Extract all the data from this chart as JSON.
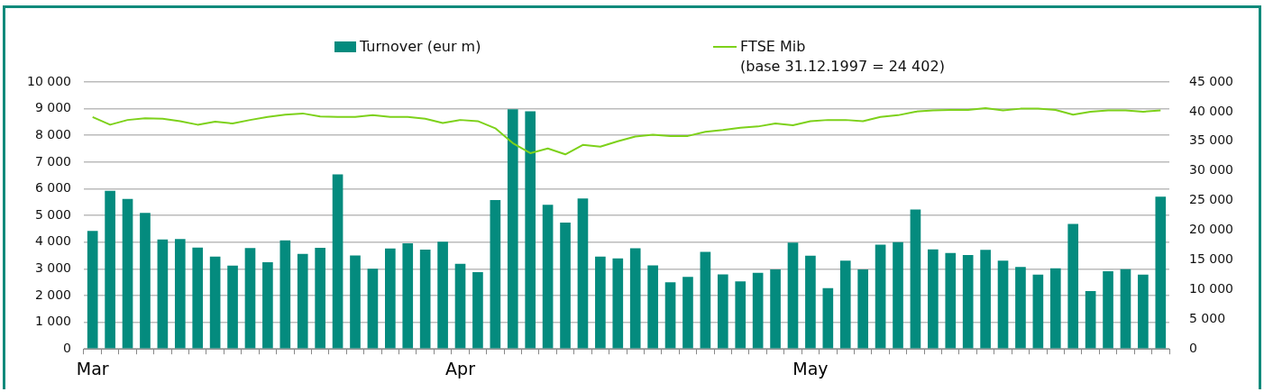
{
  "chart_data": {
    "type": "bar",
    "categories": [
      "Mar",
      null,
      null,
      null,
      null,
      null,
      null,
      null,
      null,
      null,
      null,
      null,
      null,
      null,
      null,
      null,
      null,
      null,
      null,
      null,
      null,
      "Apr",
      null,
      null,
      null,
      null,
      null,
      null,
      null,
      null,
      null,
      null,
      null,
      null,
      null,
      null,
      null,
      null,
      null,
      null,
      null,
      "May",
      null,
      null,
      null,
      null,
      null,
      null,
      null,
      null,
      null,
      null,
      null,
      null,
      null,
      null,
      null,
      null,
      null,
      null,
      null,
      null
    ],
    "series": [
      {
        "name": "Turnover (eur m)",
        "color": "#048b7e",
        "values": [
          4420,
          5920,
          5620,
          5100,
          4100,
          4120,
          3800,
          3460,
          3120,
          3780,
          3250,
          4070,
          3560,
          3790,
          6540,
          3500,
          3000,
          3760,
          3960,
          3720,
          4020,
          3190,
          2880,
          5580,
          8980,
          8900,
          5400,
          4730,
          5640,
          3460,
          3390,
          3770,
          3130,
          2500,
          2700,
          3640,
          2790,
          2530,
          2850,
          2980,
          3980,
          3490,
          2280,
          3310,
          2980,
          3910,
          4000,
          5220,
          3730,
          3590,
          3520,
          3710,
          3310,
          3070,
          2780,
          3020,
          4680,
          2170,
          2910,
          2990,
          2780,
          5700
        ]
      },
      {
        "name": "FTSE Mib\n(base 31.12.1997 = 24 402)",
        "type": "line",
        "axis": "y2",
        "color": "#7dd11a",
        "values": [
          39100,
          37800,
          38600,
          38900,
          38800,
          38400,
          37800,
          38300,
          38000,
          38600,
          39100,
          39500,
          39700,
          39200,
          39100,
          39100,
          39400,
          39100,
          39100,
          38800,
          38100,
          38600,
          38400,
          37200,
          34700,
          33000,
          33800,
          32800,
          34400,
          34100,
          35000,
          35800,
          36100,
          35900,
          35900,
          36600,
          36900,
          37300,
          37500,
          38000,
          37700,
          38400,
          38600,
          38600,
          38400,
          39100,
          39400,
          40000,
          40200,
          40300,
          40300,
          40600,
          40200,
          40500,
          40500,
          40300,
          39500,
          40000,
          40200,
          40200,
          40000,
          40200
        ]
      }
    ],
    "ylim": [
      0,
      10000
    ],
    "yticks": [
      0,
      {
        "value": 1000,
        "label": "1 000"
      },
      {
        "value": 2000,
        "label": "2 000"
      },
      {
        "value": 3000,
        "label": "3 000"
      },
      {
        "value": 4000,
        "label": "4 000"
      },
      {
        "value": 5000,
        "label": "5 000"
      },
      {
        "value": 6000,
        "label": "6 000"
      },
      {
        "value": 7000,
        "label": "7 000"
      },
      {
        "value": 8000,
        "label": "8 000"
      },
      {
        "value": 9000,
        "label": "9 000"
      },
      {
        "value": 10000,
        "label": "10 000"
      }
    ],
    "y2lim": [
      0,
      45000
    ],
    "y2ticks": [
      0,
      {
        "value": 5000,
        "label": "5 000"
      },
      {
        "value": 10000,
        "label": "10 000"
      },
      {
        "value": 15000,
        "label": "15 000"
      },
      {
        "value": 20000,
        "label": "20 000"
      },
      {
        "value": 25000,
        "label": "25 000"
      },
      {
        "value": 30000,
        "label": "30 000"
      },
      {
        "value": 35000,
        "label": "35 000"
      },
      {
        "value": 40000,
        "label": "40 000"
      },
      {
        "value": 45000,
        "label": "45 000"
      }
    ],
    "grid": "y",
    "legend": "top"
  }
}
